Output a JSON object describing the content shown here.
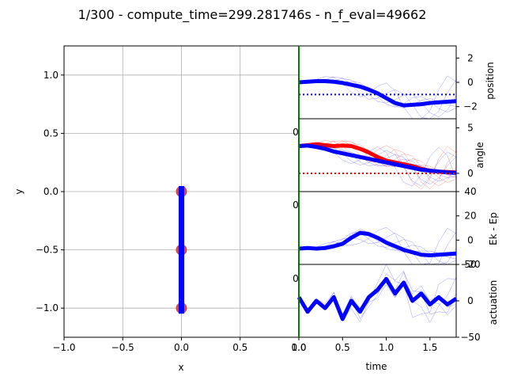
{
  "figure": {
    "suptitle": "1/300 - compute_time=299.281746s - n_f_eval=49662"
  },
  "chart_data": [
    {
      "type": "scatter",
      "name": "pendulum-view",
      "xlabel": "x",
      "ylabel": "y",
      "xlim": [
        -1.0,
        1.0
      ],
      "ylim": [
        -1.25,
        1.25
      ],
      "xticks": [
        -1.0,
        -0.5,
        0.0,
        0.5,
        1.0
      ],
      "xtick_labels": [
        "−1.0",
        "−0.5",
        "0.0",
        "0.5",
        "1.0"
      ],
      "yticks": [
        1.0,
        0.5,
        0.0,
        -0.5,
        -1.0
      ],
      "ytick_labels": [
        "1.0",
        "0.5",
        "0.0",
        "−0.5",
        "−1.0"
      ],
      "grid": true,
      "rod_color": "#0000ff",
      "joint_color": "#e8412c",
      "points": [
        {
          "x": 0.0,
          "y": 0.0
        },
        {
          "x": 0.0,
          "y": -0.5
        },
        {
          "x": 0.0,
          "y": -1.0
        }
      ]
    },
    {
      "type": "line",
      "name": "position",
      "ylabel": "position",
      "xlim": [
        0.0,
        1.8
      ],
      "ylim": [
        -3.0,
        3.0
      ],
      "yticks": [
        2,
        0,
        -2
      ],
      "ytick_labels": [
        "2",
        "0",
        "−2"
      ],
      "target": -1.0,
      "target_color": "#0000ff",
      "current_time": 0.0,
      "series": [
        {
          "color": "#0000ff",
          "x": [
            0.0,
            0.1,
            0.2,
            0.3,
            0.4,
            0.5,
            0.6,
            0.7,
            0.8,
            0.9,
            1.0,
            1.1,
            1.2,
            1.3,
            1.4,
            1.5,
            1.6,
            1.7,
            1.8
          ],
          "y": [
            0.0,
            0.05,
            0.1,
            0.1,
            0.05,
            -0.05,
            -0.2,
            -0.35,
            -0.6,
            -0.9,
            -1.3,
            -1.7,
            -1.9,
            -1.85,
            -1.8,
            -1.7,
            -1.65,
            -1.6,
            -1.55
          ]
        }
      ]
    },
    {
      "type": "line",
      "name": "angle",
      "ylabel": "angle",
      "xlim": [
        0.0,
        1.8
      ],
      "ylim": [
        -2.0,
        6.0
      ],
      "yticks": [
        5,
        0
      ],
      "ytick_labels": [
        "5",
        "0"
      ],
      "target": 0.0,
      "target_color": "#ff0000",
      "current_time": 0.0,
      "side_label": "0",
      "series": [
        {
          "color": "#ff0000",
          "x": [
            0.0,
            0.1,
            0.2,
            0.3,
            0.4,
            0.5,
            0.6,
            0.7,
            0.8,
            0.9,
            1.0,
            1.1,
            1.2,
            1.3,
            1.4,
            1.5,
            1.6,
            1.7,
            1.8
          ],
          "y": [
            3.0,
            3.1,
            3.2,
            3.1,
            3.0,
            3.05,
            3.0,
            2.7,
            2.3,
            1.8,
            1.4,
            1.2,
            1.0,
            0.8,
            0.5,
            0.3,
            0.2,
            0.15,
            0.1
          ]
        },
        {
          "color": "#0000ff",
          "x": [
            0.0,
            0.1,
            0.2,
            0.3,
            0.4,
            0.5,
            0.6,
            0.7,
            0.8,
            0.9,
            1.0,
            1.1,
            1.2,
            1.3,
            1.4,
            1.5,
            1.6,
            1.7,
            1.8
          ],
          "y": [
            3.0,
            3.05,
            2.9,
            2.7,
            2.4,
            2.2,
            2.0,
            1.8,
            1.6,
            1.4,
            1.2,
            1.0,
            0.8,
            0.6,
            0.4,
            0.3,
            0.2,
            0.1,
            0.05
          ]
        }
      ]
    },
    {
      "type": "line",
      "name": "energy",
      "ylabel": "Ek - Ep",
      "xlim": [
        0.0,
        1.8
      ],
      "ylim": [
        -20.0,
        40.0
      ],
      "yticks": [
        40,
        20,
        0,
        -20
      ],
      "ytick_labels": [
        "40",
        "20",
        "0",
        "−20"
      ],
      "current_time": 0.0,
      "side_label": "0",
      "series": [
        {
          "color": "#0000ff",
          "x": [
            0.0,
            0.1,
            0.2,
            0.3,
            0.4,
            0.5,
            0.6,
            0.7,
            0.8,
            0.9,
            1.0,
            1.1,
            1.2,
            1.3,
            1.4,
            1.5,
            1.6,
            1.7,
            1.8
          ],
          "y": [
            -7.0,
            -6.5,
            -7.0,
            -6.5,
            -5.0,
            -3.0,
            2.0,
            6.0,
            5.0,
            2.0,
            -2.0,
            -5.0,
            -8.0,
            -10.0,
            -12.0,
            -12.5,
            -12.0,
            -11.5,
            -11.0
          ]
        }
      ]
    },
    {
      "type": "line",
      "name": "actuation",
      "ylabel": "actuation",
      "xlabel": "time",
      "xlim": [
        0.0,
        1.8
      ],
      "ylim": [
        -50.0,
        50.0
      ],
      "yticks": [
        50,
        0,
        -50
      ],
      "ytick_labels": [
        "50",
        "0",
        "−50"
      ],
      "xticks": [
        0.0,
        0.5,
        1.0,
        1.5
      ],
      "xtick_labels": [
        "0.0",
        "0.5",
        "1.0",
        "1.5"
      ],
      "current_time": 0.0,
      "side_label": "0",
      "series": [
        {
          "color": "#0000ff",
          "x": [
            0.0,
            0.1,
            0.2,
            0.3,
            0.4,
            0.5,
            0.6,
            0.7,
            0.8,
            0.9,
            1.0,
            1.1,
            1.2,
            1.3,
            1.4,
            1.5,
            1.6,
            1.7,
            1.8
          ],
          "y": [
            5.0,
            -15.0,
            0.0,
            -10.0,
            5.0,
            -25.0,
            0.0,
            -15.0,
            5.0,
            15.0,
            30.0,
            10.0,
            25.0,
            0.0,
            10.0,
            -5.0,
            5.0,
            -5.0,
            3.0
          ]
        }
      ]
    }
  ]
}
